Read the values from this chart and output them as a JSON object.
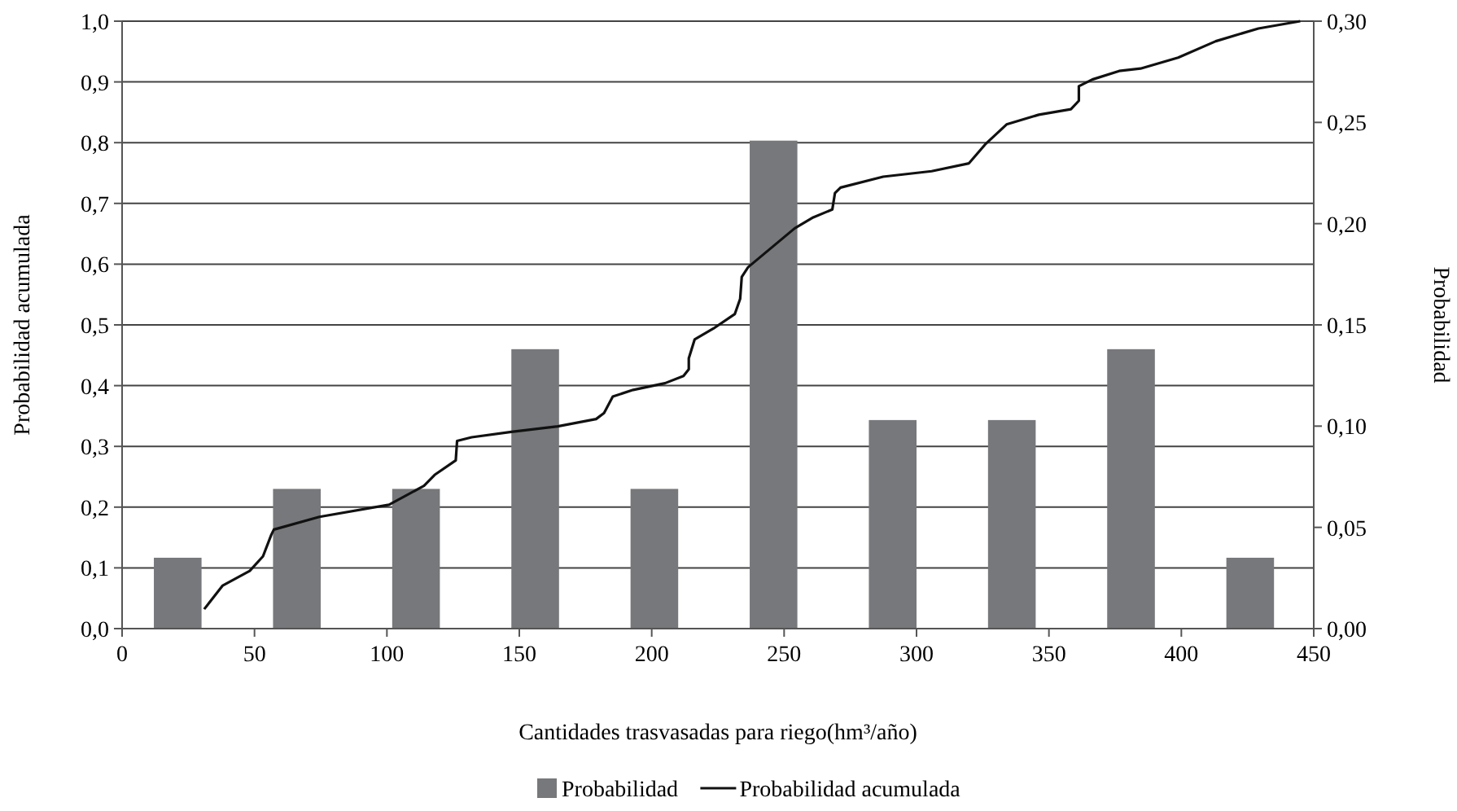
{
  "chart_data": {
    "type": "bar",
    "xlabel": "Cantidades trasvasadas para riego(hm³/año)",
    "ylabel": "Probabilidad acumulada",
    "y2label": "Probabilidad",
    "xlim": [
      0,
      450
    ],
    "xticks": [
      0,
      50,
      100,
      150,
      200,
      250,
      300,
      350,
      400,
      450
    ],
    "ylim": [
      0,
      1
    ],
    "yticks": [
      {
        "value": 0,
        "label": "0,0"
      },
      {
        "value": 0.1,
        "label": "0,1"
      },
      {
        "value": 0.2,
        "label": "0,2"
      },
      {
        "value": 0.3,
        "label": "0,3"
      },
      {
        "value": 0.4,
        "label": "0,4"
      },
      {
        "value": 0.5,
        "label": "0,5"
      },
      {
        "value": 0.6,
        "label": "0,6"
      },
      {
        "value": 0.7,
        "label": "0,7"
      },
      {
        "value": 0.8,
        "label": "0,8"
      },
      {
        "value": 0.9,
        "label": "0,9"
      },
      {
        "value": 1,
        "label": "1,0"
      }
    ],
    "y2lim": [
      0,
      0.3
    ],
    "y2ticks": [
      {
        "value": 0,
        "label": "0,00"
      },
      {
        "value": 0.05,
        "label": "0,05"
      },
      {
        "value": 0.1,
        "label": "0,10"
      },
      {
        "value": 0.15,
        "label": "0,15"
      },
      {
        "value": 0.2,
        "label": "0,20"
      },
      {
        "value": 0.25,
        "label": "0,25"
      },
      {
        "value": 0.3,
        "label": "0,30"
      }
    ],
    "grid": "y",
    "legend": "bottom",
    "series": [
      {
        "name": "Probabilidad",
        "axis": "y2",
        "color": "#77787b",
        "x": [
          21,
          66,
          111,
          156,
          201,
          246,
          291,
          336,
          381,
          426
        ],
        "values": [
          0.035,
          0.069,
          0.069,
          0.138,
          0.069,
          0.241,
          0.103,
          0.103,
          0.138,
          0.035
        ]
      },
      {
        "name": "Probabilidad acumulada",
        "type": "line",
        "color": "#111111",
        "marker": "none",
        "line_style": "solid",
        "x": [
          31,
          38,
          48.2,
          53.2,
          56.3,
          57.3,
          74.5,
          100.8,
          114,
          118,
          126,
          126.5,
          132,
          147,
          164.5,
          179,
          182,
          185.3,
          193,
          205,
          212,
          214,
          214,
          216.2,
          223.3,
          231.4,
          233.4,
          234,
          236.4,
          254,
          261,
          268.2,
          269.2,
          271.3,
          287.4,
          305.7,
          319.8,
          325.9,
          334,
          346.2,
          358.3,
          361.3,
          361.3,
          366.4,
          376.5,
          384.6,
          398.8,
          413,
          429.1,
          444.9
        ],
        "values": [
          0.032,
          0.071,
          0.095,
          0.119,
          0.154,
          0.163,
          0.184,
          0.204,
          0.235,
          0.253,
          0.277,
          0.309,
          0.315,
          0.324,
          0.333,
          0.345,
          0.355,
          0.382,
          0.393,
          0.404,
          0.416,
          0.427,
          0.445,
          0.476,
          0.494,
          0.518,
          0.543,
          0.579,
          0.595,
          0.659,
          0.677,
          0.69,
          0.717,
          0.726,
          0.744,
          0.753,
          0.766,
          0.797,
          0.83,
          0.846,
          0.855,
          0.869,
          0.893,
          0.904,
          0.918,
          0.922,
          0.94,
          0.967,
          0.988,
          1.0
        ]
      }
    ]
  }
}
